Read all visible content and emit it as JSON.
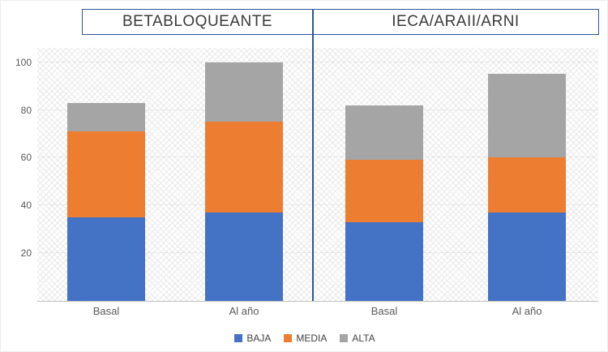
{
  "chart_data": {
    "type": "bar",
    "stacked": true,
    "panels": [
      {
        "title": "BETABLOQUEANTE",
        "categories": [
          "Basal",
          "Al año"
        ],
        "series": [
          {
            "name": "BAJA",
            "values": [
              35,
              37
            ]
          },
          {
            "name": "MEDIA",
            "values": [
              36,
              38
            ]
          },
          {
            "name": "ALTA",
            "values": [
              12,
              25
            ]
          }
        ]
      },
      {
        "title": "IECA/ARAII/ARNI",
        "categories": [
          "Basal",
          "Al año"
        ],
        "series": [
          {
            "name": "BAJA",
            "values": [
              33,
              37
            ]
          },
          {
            "name": "MEDIA",
            "values": [
              26,
              23
            ]
          },
          {
            "name": "ALTA",
            "values": [
              23,
              35
            ]
          }
        ]
      }
    ],
    "y_ticks": [
      20,
      40,
      60,
      80,
      100
    ],
    "ylim": [
      0,
      106
    ],
    "grid": true,
    "legend_position": "bottom",
    "legend": [
      {
        "label": "BAJA",
        "color": "#4472C4"
      },
      {
        "label": "MEDIA",
        "color": "#ED7D31"
      },
      {
        "label": "ALTA",
        "color": "#A5A5A5"
      }
    ],
    "colors": {
      "BAJA": "#4472C4",
      "MEDIA": "#ED7D31",
      "ALTA": "#A5A5A5"
    },
    "accent_border": "#2F5597"
  }
}
